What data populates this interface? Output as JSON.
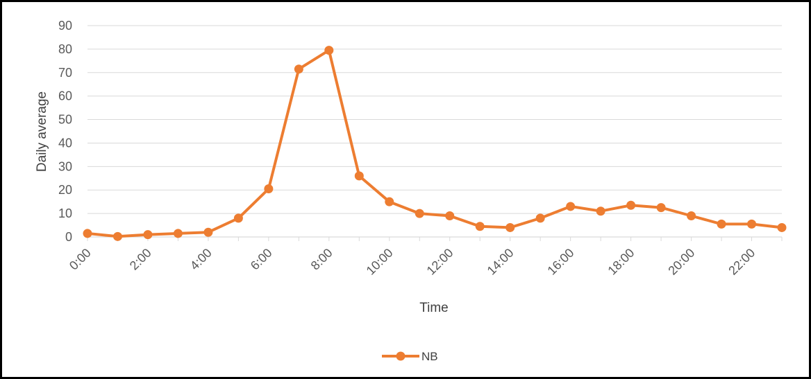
{
  "chart_data": {
    "type": "line",
    "title": "",
    "xlabel": "Time",
    "ylabel": "Daily average",
    "ylim": [
      0,
      90
    ],
    "yticks": [
      0,
      10,
      20,
      30,
      40,
      50,
      60,
      70,
      80,
      90
    ],
    "x": [
      "0:00",
      "1:00",
      "2:00",
      "3:00",
      "4:00",
      "5:00",
      "6:00",
      "7:00",
      "8:00",
      "9:00",
      "10:00",
      "11:00",
      "12:00",
      "13:00",
      "14:00",
      "15:00",
      "16:00",
      "17:00",
      "18:00",
      "19:00",
      "20:00",
      "21:00",
      "22:00",
      "23:00"
    ],
    "xtick_labels": [
      "0:00",
      "2:00",
      "4:00",
      "6:00",
      "8:00",
      "10:00",
      "12:00",
      "14:00",
      "16:00",
      "18:00",
      "20:00",
      "22:00"
    ],
    "grid": true,
    "legend_position": "bottom",
    "series": [
      {
        "name": "NB",
        "color": "#ED7D31",
        "values": [
          1.5,
          0.2,
          1.0,
          1.5,
          2.0,
          8.0,
          20.5,
          71.5,
          79.5,
          26.0,
          15.0,
          10.0,
          9.0,
          4.5,
          4.0,
          8.0,
          13.0,
          11.0,
          13.5,
          12.5,
          9.0,
          5.5,
          5.5,
          4.0
        ]
      }
    ]
  }
}
